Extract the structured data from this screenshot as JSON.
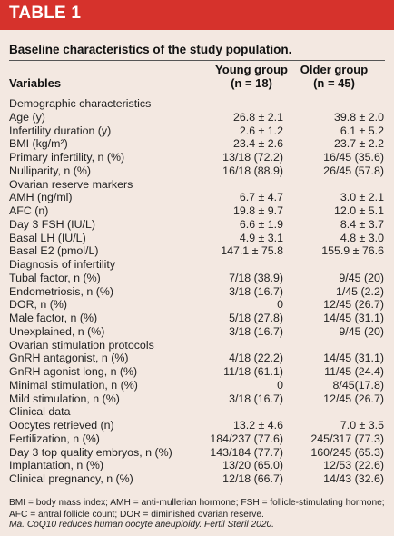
{
  "header": {
    "title": "TABLE 1"
  },
  "caption": "Baseline characteristics of the study population.",
  "columns": {
    "variables": "Variables",
    "young_line1": "Young group",
    "young_line2": "(n = 18)",
    "older_line1": "Older group",
    "older_line2": "(n = 45)"
  },
  "rows": [
    {
      "label": "Demographic characteristics",
      "young": "",
      "older": ""
    },
    {
      "label": "Age (y)",
      "young": "26.8 ± 2.1",
      "older": "39.8 ± 2.0"
    },
    {
      "label": "Infertility duration (y)",
      "young": "2.6 ± 1.2",
      "older": "6.1 ± 5.2"
    },
    {
      "label": "BMI (kg/m²)",
      "young": "23.4 ± 2.6",
      "older": "23.7 ± 2.2"
    },
    {
      "label": "Primary infertility, n (%)",
      "young": "13/18 (72.2)",
      "older": "16/45 (35.6)"
    },
    {
      "label": "Nulliparity, n (%)",
      "young": "16/18 (88.9)",
      "older": "26/45 (57.8)"
    },
    {
      "label": "Ovarian reserve markers",
      "young": "",
      "older": ""
    },
    {
      "label": "AMH (ng/ml)",
      "young": "6.7 ± 4.7",
      "older": "3.0 ± 2.1"
    },
    {
      "label": "AFC (n)",
      "young": "19.8 ± 9.7",
      "older": "12.0 ± 5.1"
    },
    {
      "label": "Day 3 FSH (IU/L)",
      "young": "6.6 ± 1.9",
      "older": "8.4 ± 3.7"
    },
    {
      "label": "Basal LH (IU/L)",
      "young": "4.9 ± 3.1",
      "older": "4.8 ± 3.0"
    },
    {
      "label": "Basal E2 (pmol/L)",
      "young": "147.1 ± 75.8",
      "older": "155.9 ± 76.6"
    },
    {
      "label": "Diagnosis of infertility",
      "young": "",
      "older": ""
    },
    {
      "label": "Tubal factor, n (%)",
      "young": "7/18 (38.9)",
      "older": "9/45 (20)"
    },
    {
      "label": "Endometriosis, n (%)",
      "young": "3/18 (16.7)",
      "older": "1/45 (2.2)"
    },
    {
      "label": "DOR, n (%)",
      "young": "0",
      "older": "12/45 (26.7)"
    },
    {
      "label": "Male factor, n (%)",
      "young": "5/18 (27.8)",
      "older": "14/45 (31.1)"
    },
    {
      "label": "Unexplained, n (%)",
      "young": "3/18 (16.7)",
      "older": "9/45 (20)"
    },
    {
      "label": "Ovarian stimulation protocols",
      "young": "",
      "older": ""
    },
    {
      "label": "GnRH antagonist, n (%)",
      "young": "4/18 (22.2)",
      "older": "14/45 (31.1)"
    },
    {
      "label": "GnRH agonist long, n (%)",
      "young": "11/18 (61.1)",
      "older": "11/45 (24.4)"
    },
    {
      "label": "Minimal stimulation, n (%)",
      "young": "0",
      "older": "8/45(17.8)"
    },
    {
      "label": "Mild stimulation, n (%)",
      "young": "3/18 (16.7)",
      "older": "12/45 (26.7)"
    },
    {
      "label": "Clinical data",
      "young": "",
      "older": ""
    },
    {
      "label": "Oocytes retrieved (n)",
      "young": "13.2 ± 4.6",
      "older": "7.0 ± 3.5"
    },
    {
      "label": "Fertilization, n (%)",
      "young": "184/237 (77.6)",
      "older": "245/317 (77.3)"
    },
    {
      "label": "Day 3 top quality embryos, n (%)",
      "young": "143/184 (77.7)",
      "older": "160/245 (65.3)"
    },
    {
      "label": "Implantation, n (%)",
      "young": "13/20 (65.0)",
      "older": "12/53 (22.6)"
    },
    {
      "label": "Clinical pregnancy, n (%)",
      "young": "12/18 (66.7)",
      "older": "14/43 (32.6)"
    }
  ],
  "footnote": "BMI = body mass index; AMH = anti-mullerian hormone; FSH = follicle-stimulating hormone; AFC = antral follicle count; DOR = diminished ovarian reserve.",
  "source": "Ma. CoQ10 reduces human oocyte aneuploidy. Fertil Steril 2020.",
  "colors": {
    "header_bg": "#d6322c",
    "panel_bg": "#f3e8e1"
  }
}
